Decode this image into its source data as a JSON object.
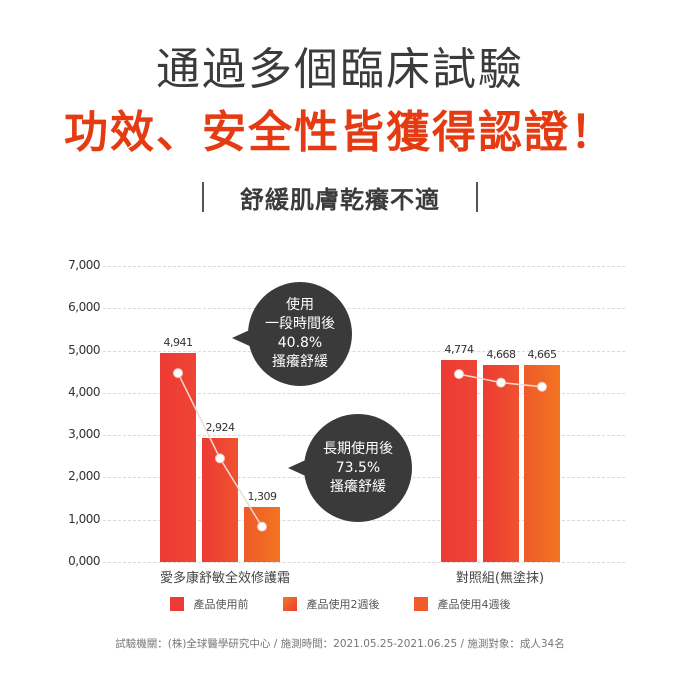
{
  "header": {
    "title_line1": "通過多個臨床試驗",
    "title_line2": "功效、安全性皆獲得認證！",
    "subtitle": "舒緩肌膚乾癢不適"
  },
  "colors": {
    "accent": "#e53b12",
    "title_gray": "#3b3b3b",
    "series_before": "#ec3a34",
    "series_2weeks": "#f0522f",
    "series_4weeks": "#f2751f",
    "bubble": "#3a3a3a"
  },
  "callouts": [
    {
      "line1": "使用",
      "line2": "一段時間後",
      "line3": "40.8%",
      "line4": "搔癢舒緩"
    },
    {
      "line1": "長期使用後",
      "line2": "73.5%",
      "line3": "搔癢舒緩"
    }
  ],
  "chart_data": {
    "type": "bar",
    "title": "舒緩肌膚乾癢不適",
    "xlabel": "",
    "ylabel": "",
    "ylim": [
      0,
      7000
    ],
    "yticks": [
      "0,000",
      "1,000",
      "2,000",
      "3,000",
      "4,000",
      "5,000",
      "6,000",
      "7,000"
    ],
    "grid": true,
    "legend_position": "bottom",
    "categories": [
      "愛多康舒敏全效修護霜",
      "對照組(無塗抹)"
    ],
    "series": [
      {
        "name": "產品使用前",
        "values": [
          4941,
          4774
        ],
        "labels": [
          "4,941",
          "4,774"
        ]
      },
      {
        "name": "產品使用2週後",
        "values": [
          2924,
          4668
        ],
        "labels": [
          "2,924",
          "4,668"
        ]
      },
      {
        "name": "產品使用4週後",
        "values": [
          1309,
          4665
        ],
        "labels": [
          "1,309",
          "4,665"
        ]
      }
    ],
    "overlay": "line connecting bar tops within each group"
  },
  "legend": [
    {
      "label": "產品使用前"
    },
    {
      "label": "產品使用2週後"
    },
    {
      "label": "產品使用4週後"
    }
  ],
  "footer": "試驗機關：(株)全球醫學研究中心 / 施測時間：2021.05.25-2021.06.25 / 施測對象：成人34名"
}
